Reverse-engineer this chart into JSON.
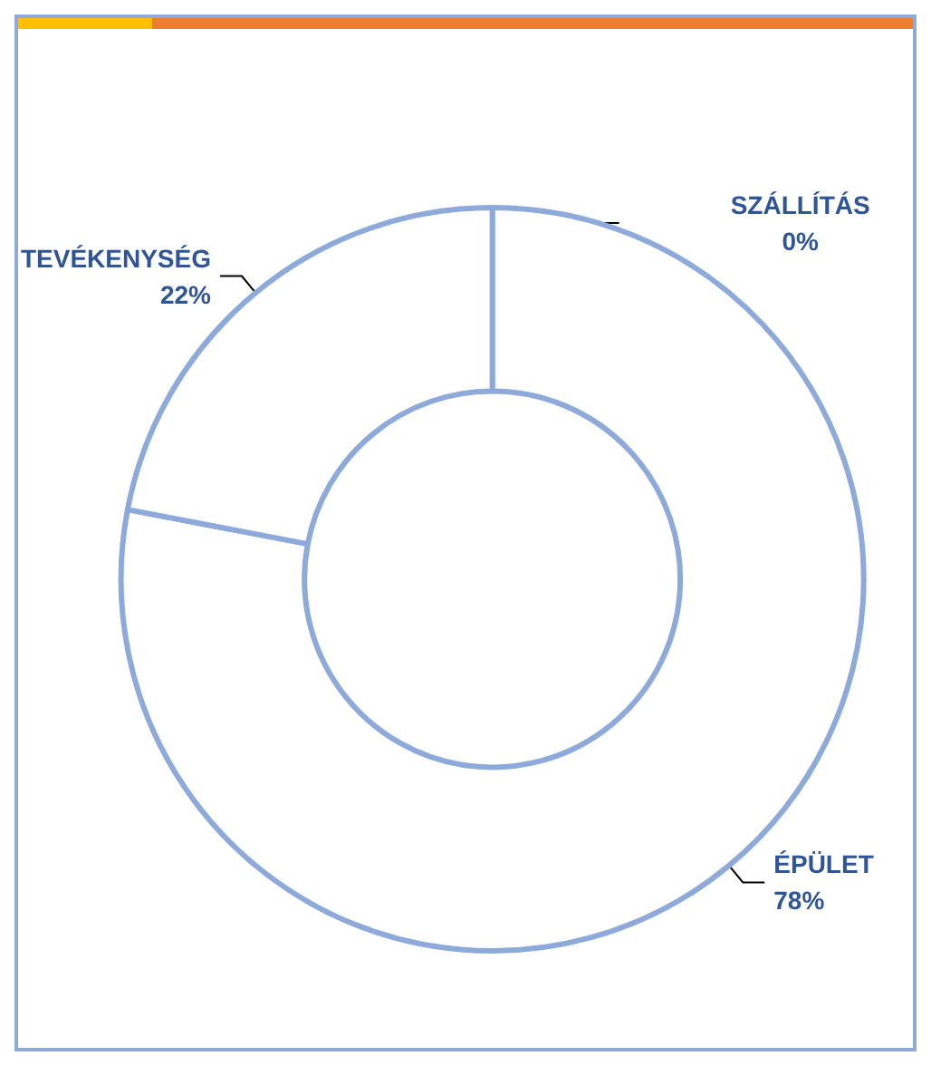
{
  "chart_data": {
    "type": "donut",
    "categories": [
      "SZÁLLÍTÁS",
      "ÉPÜLET",
      "TEVÉKENYSÉG"
    ],
    "values": [
      0,
      78,
      22
    ],
    "colors": [
      "#ffffff",
      "#ffffff",
      "#ffffff"
    ],
    "value_labels": [
      "0%",
      "78%",
      "22%"
    ],
    "legend": false
  }
}
